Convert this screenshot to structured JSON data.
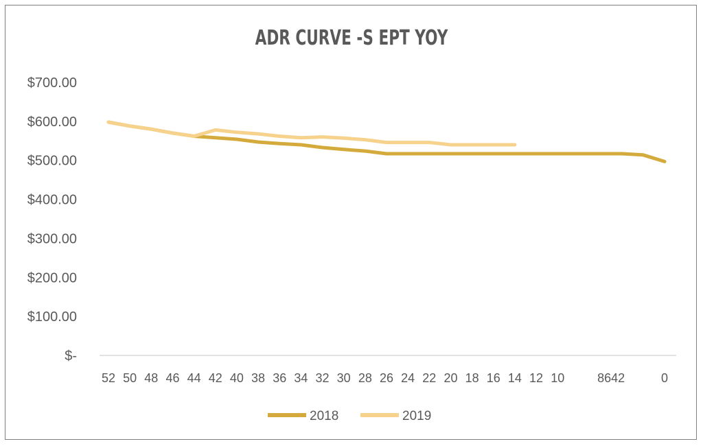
{
  "chart_data": {
    "type": "line",
    "title": "ADR CURVE -S EPT YOY",
    "xlabel": "",
    "ylabel": "",
    "x_tick_labels": [
      "52",
      "50",
      "48",
      "46",
      "44",
      "42",
      "40",
      "38",
      "36",
      "34",
      "32",
      "30",
      "28",
      "26",
      "24",
      "22",
      "20",
      "18",
      "16",
      "14",
      "12",
      "10",
      "8642",
      "0"
    ],
    "y_tick_labels": [
      "$-",
      "$100.00",
      "$200.00",
      "$300.00",
      "$400.00",
      "$500.00",
      "$600.00",
      "$700.00"
    ],
    "ylim": [
      0,
      700
    ],
    "series": [
      {
        "name": "2018",
        "color": "#d4aa3c",
        "points": [
          [
            52,
            598
          ],
          [
            50,
            588
          ],
          [
            48,
            580
          ],
          [
            46,
            570
          ],
          [
            44,
            562
          ],
          [
            42,
            558
          ],
          [
            40,
            554
          ],
          [
            38,
            547
          ],
          [
            36,
            543
          ],
          [
            34,
            540
          ],
          [
            32,
            533
          ],
          [
            30,
            528
          ],
          [
            28,
            524
          ],
          [
            26,
            517
          ],
          [
            24,
            517
          ],
          [
            22,
            517
          ],
          [
            20,
            517
          ],
          [
            18,
            517
          ],
          [
            16,
            517
          ],
          [
            14,
            517
          ],
          [
            12,
            517
          ],
          [
            10,
            517
          ],
          [
            8,
            517
          ],
          [
            6,
            517
          ],
          [
            4,
            517
          ],
          [
            2,
            514
          ],
          [
            0,
            497
          ]
        ]
      },
      {
        "name": "2019",
        "color": "#f6d28d",
        "points": [
          [
            52,
            598
          ],
          [
            50,
            588
          ],
          [
            48,
            580
          ],
          [
            46,
            570
          ],
          [
            44,
            562
          ],
          [
            42,
            578
          ],
          [
            40,
            572
          ],
          [
            38,
            568
          ],
          [
            36,
            562
          ],
          [
            34,
            558
          ],
          [
            32,
            560
          ],
          [
            30,
            557
          ],
          [
            28,
            553
          ],
          [
            26,
            546
          ],
          [
            24,
            546
          ],
          [
            22,
            546
          ],
          [
            20,
            540
          ],
          [
            18,
            540
          ],
          [
            16,
            540
          ],
          [
            14,
            540
          ]
        ]
      }
    ],
    "legend": {
      "position": "bottom"
    },
    "grid": false
  }
}
